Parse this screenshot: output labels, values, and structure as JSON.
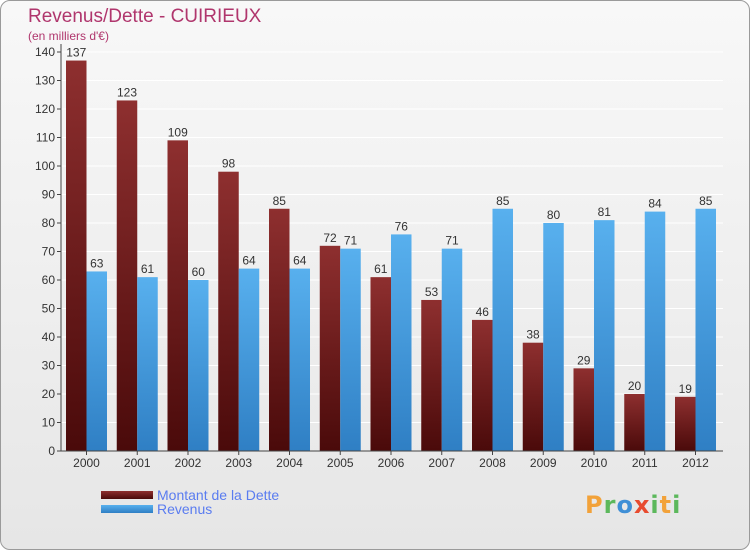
{
  "title": "Revenus/Dette - CUIRIEUX",
  "subtitle": "(en milliers d'€)",
  "logo_text": "Proxiti",
  "chart_data": {
    "type": "bar",
    "categories": [
      "2000",
      "2001",
      "2002",
      "2003",
      "2004",
      "2005",
      "2006",
      "2007",
      "2008",
      "2009",
      "2010",
      "2011",
      "2012"
    ],
    "series": [
      {
        "name": "Montant de la Dette",
        "color": "#8b2a2a",
        "values": [
          137,
          123,
          109,
          98,
          85,
          72,
          61,
          53,
          46,
          38,
          29,
          20,
          19
        ]
      },
      {
        "name": "Revenus",
        "color": "#4aa3e6",
        "values": [
          63,
          61,
          60,
          64,
          64,
          71,
          76,
          71,
          85,
          80,
          81,
          84,
          85
        ]
      }
    ],
    "ylim": [
      0,
      140
    ],
    "yticks": [
      0,
      10,
      20,
      30,
      40,
      50,
      60,
      70,
      80,
      90,
      100,
      110,
      120,
      130,
      140
    ],
    "grid": true,
    "legend_position": "bottom-left"
  }
}
